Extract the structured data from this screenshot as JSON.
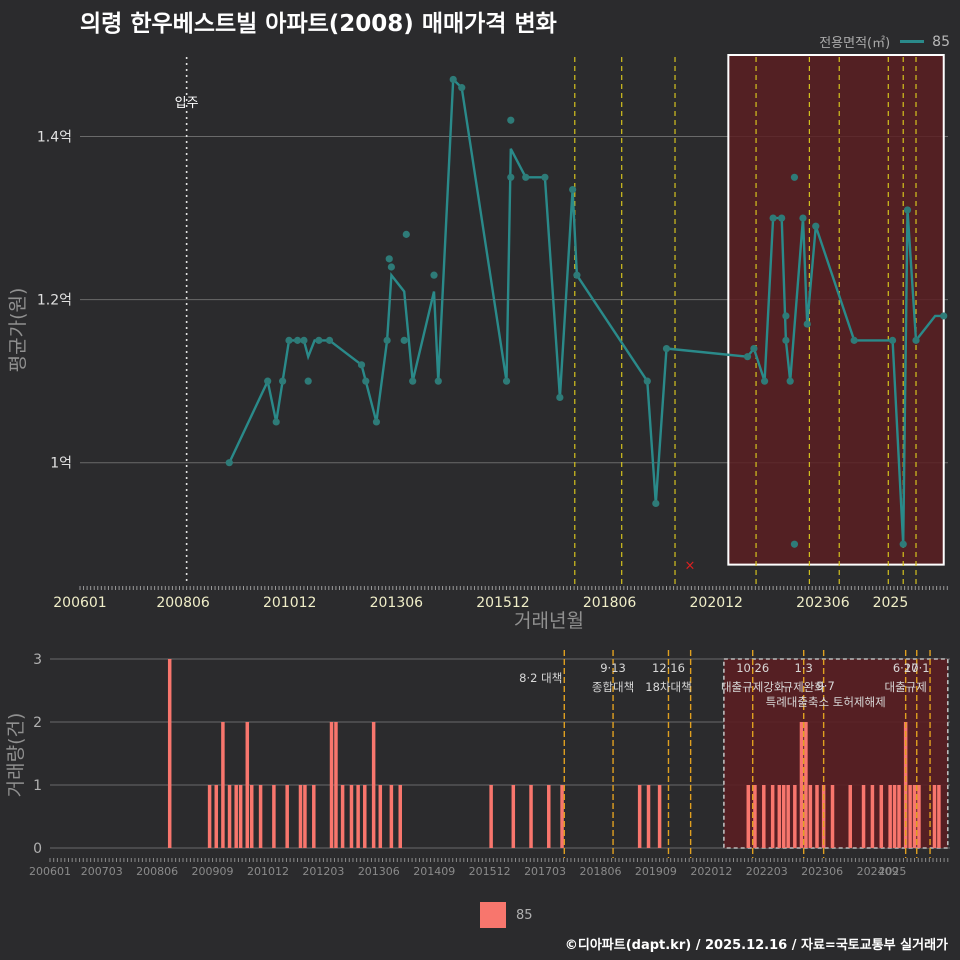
{
  "title": "의령 한우베스트빌 아파트(2008) 매매가격 변화",
  "legend_top": {
    "title": "전용면적(㎡)",
    "value": "85"
  },
  "legend_bottom": {
    "value": "85"
  },
  "footer": "©디아파트(dapt.kr) / 2025.12.16 / 자료=국토교통부 실거래가",
  "colors": {
    "background": "#2b2b2d",
    "line": "#2a8a8a",
    "point": "#2e7b78",
    "bar": "#f8766d",
    "policy": "#d4c21e",
    "policy_bottom": "#e0a020",
    "highlight": "#5a1e22"
  },
  "chart_data": [
    {
      "type": "line",
      "title": "의령 한우베스트빌 아파트(2008) 매매가격 변화",
      "xlabel": "거래년월",
      "ylabel": "평균가(원)",
      "x_ticks": [
        "200601",
        "200806",
        "201012",
        "201306",
        "201512",
        "201806",
        "202012",
        "202306",
        "2025"
      ],
      "y_ticks": [
        {
          "value": 1.0,
          "label": "1억"
        },
        {
          "value": 1.2,
          "label": "1.2억"
        },
        {
          "value": 1.4,
          "label": "1.4억"
        }
      ],
      "ylim": [
        0.85,
        1.5
      ],
      "move_in": {
        "x": 2008.5,
        "label": "입주"
      },
      "policy_lines": [
        2017.6,
        2018.7,
        2019.95,
        2021.85,
        2023.1,
        2023.8,
        2024.95,
        2025.3,
        2025.6
      ],
      "highlight_range": {
        "x": [
          2021.2,
          2026.25
        ],
        "y": [
          0.875,
          1.5
        ]
      },
      "cross_marker": {
        "x": 2020.3,
        "y": 0.875
      },
      "series": [
        {
          "name": "85",
          "line": [
            [
              2009.5,
              1.0
            ],
            [
              2010.4,
              1.1
            ],
            [
              2010.6,
              1.05
            ],
            [
              2010.75,
              1.1
            ],
            [
              2010.9,
              1.15
            ],
            [
              2011.1,
              1.15
            ],
            [
              2011.25,
              1.15
            ],
            [
              2011.35,
              1.13
            ],
            [
              2011.5,
              1.15
            ],
            [
              2011.6,
              1.15
            ],
            [
              2011.85,
              1.15
            ],
            [
              2012.6,
              1.12
            ],
            [
              2012.7,
              1.1
            ],
            [
              2012.95,
              1.05
            ],
            [
              2013.2,
              1.15
            ],
            [
              2013.3,
              1.23
            ],
            [
              2013.6,
              1.21
            ],
            [
              2013.8,
              1.1
            ],
            [
              2014.3,
              1.21
            ],
            [
              2014.4,
              1.1
            ],
            [
              2014.75,
              1.47
            ],
            [
              2014.95,
              1.46
            ],
            [
              2016.0,
              1.1
            ],
            [
              2016.1,
              1.385
            ],
            [
              2016.45,
              1.35
            ],
            [
              2016.9,
              1.35
            ],
            [
              2017.25,
              1.08
            ],
            [
              2017.55,
              1.335
            ],
            [
              2017.65,
              1.23
            ],
            [
              2019.3,
              1.1
            ],
            [
              2019.5,
              0.95
            ],
            [
              2019.75,
              1.14
            ],
            [
              2021.65,
              1.13
            ],
            [
              2021.8,
              1.14
            ],
            [
              2022.05,
              1.1
            ],
            [
              2022.25,
              1.3
            ],
            [
              2022.45,
              1.3
            ],
            [
              2022.55,
              1.15
            ],
            [
              2022.65,
              1.1
            ],
            [
              2022.95,
              1.3
            ],
            [
              2023.05,
              1.17
            ],
            [
              2023.25,
              1.29
            ],
            [
              2024.15,
              1.15
            ],
            [
              2025.05,
              1.15
            ],
            [
              2025.3,
              0.9
            ],
            [
              2025.4,
              1.31
            ],
            [
              2025.6,
              1.15
            ],
            [
              2026.05,
              1.18
            ],
            [
              2026.25,
              1.18
            ]
          ],
          "points": [
            [
              2009.5,
              1.0
            ],
            [
              2010.4,
              1.1
            ],
            [
              2010.6,
              1.05
            ],
            [
              2010.75,
              1.1
            ],
            [
              2010.9,
              1.15
            ],
            [
              2011.1,
              1.15
            ],
            [
              2011.25,
              1.15
            ],
            [
              2011.35,
              1.1
            ],
            [
              2011.6,
              1.15
            ],
            [
              2011.85,
              1.15
            ],
            [
              2012.6,
              1.12
            ],
            [
              2012.7,
              1.1
            ],
            [
              2012.95,
              1.05
            ],
            [
              2013.2,
              1.15
            ],
            [
              2013.25,
              1.25
            ],
            [
              2013.3,
              1.24
            ],
            [
              2013.6,
              1.15
            ],
            [
              2013.65,
              1.28
            ],
            [
              2013.8,
              1.1
            ],
            [
              2014.3,
              1.23
            ],
            [
              2014.4,
              1.1
            ],
            [
              2014.75,
              1.47
            ],
            [
              2014.95,
              1.46
            ],
            [
              2016.0,
              1.1
            ],
            [
              2016.1,
              1.42
            ],
            [
              2016.1,
              1.35
            ],
            [
              2016.45,
              1.35
            ],
            [
              2016.9,
              1.35
            ],
            [
              2017.25,
              1.08
            ],
            [
              2017.55,
              1.335
            ],
            [
              2017.65,
              1.23
            ],
            [
              2019.3,
              1.1
            ],
            [
              2019.5,
              0.95
            ],
            [
              2019.75,
              1.14
            ],
            [
              2021.65,
              1.13
            ],
            [
              2021.8,
              1.14
            ],
            [
              2022.05,
              1.1
            ],
            [
              2022.25,
              1.3
            ],
            [
              2022.45,
              1.3
            ],
            [
              2022.55,
              1.18
            ],
            [
              2022.55,
              1.15
            ],
            [
              2022.65,
              1.1
            ],
            [
              2022.75,
              1.35
            ],
            [
              2022.75,
              0.9
            ],
            [
              2022.95,
              1.3
            ],
            [
              2023.05,
              1.17
            ],
            [
              2023.25,
              1.29
            ],
            [
              2024.15,
              1.15
            ],
            [
              2025.05,
              1.15
            ],
            [
              2025.3,
              0.9
            ],
            [
              2025.4,
              1.31
            ],
            [
              2025.6,
              1.15
            ],
            [
              2026.25,
              1.18
            ]
          ]
        }
      ]
    },
    {
      "type": "bar",
      "xlabel": "",
      "ylabel": "거래량(건)",
      "x_ticks": [
        "200601",
        "200703",
        "200806",
        "200909",
        "201012",
        "201203",
        "201306",
        "201409",
        "201512",
        "201703",
        "201806",
        "201909",
        "202012",
        "202203",
        "202306",
        "202409",
        "2025"
      ],
      "y_ticks": [
        0,
        1,
        2,
        3
      ],
      "ylim": [
        0,
        3.2
      ],
      "highlight_range": {
        "x": [
          2021.2,
          2026.25
        ],
        "y": [
          0,
          3.0
        ]
      },
      "policies": [
        {
          "x": 2017.6,
          "date": "8·2",
          "label": "8·2 대책"
        },
        {
          "x": 2018.7,
          "date": "9·13",
          "label": "종합대책"
        },
        {
          "x": 2019.95,
          "date": "12·16",
          "label": "18차대책"
        },
        {
          "x": 2020.45,
          "date": "",
          "label": ""
        },
        {
          "x": 2021.85,
          "date": "10·26",
          "label": "대출규제강화"
        },
        {
          "x": 2023.0,
          "date": "1·3",
          "label": "규제완화"
        },
        {
          "x": 2023.45,
          "date": "9·7",
          "label": "특례대출축소 토허제해제"
        },
        {
          "x": 2025.3,
          "date": "6·27",
          "label": "대출규제"
        },
        {
          "x": 2025.55,
          "date": "10·1",
          "label": ""
        },
        {
          "x": 2025.85,
          "date": "",
          "label": ""
        }
      ],
      "bars": [
        [
          2008.7,
          3
        ],
        [
          2009.6,
          1
        ],
        [
          2009.75,
          1
        ],
        [
          2009.9,
          2
        ],
        [
          2010.05,
          1
        ],
        [
          2010.2,
          1
        ],
        [
          2010.3,
          1
        ],
        [
          2010.45,
          2
        ],
        [
          2010.55,
          1
        ],
        [
          2010.75,
          1
        ],
        [
          2011.05,
          1
        ],
        [
          2011.35,
          1
        ],
        [
          2011.65,
          1
        ],
        [
          2011.75,
          1
        ],
        [
          2011.95,
          1
        ],
        [
          2012.35,
          2
        ],
        [
          2012.45,
          2
        ],
        [
          2012.6,
          1
        ],
        [
          2012.8,
          1
        ],
        [
          2012.95,
          1
        ],
        [
          2013.1,
          1
        ],
        [
          2013.3,
          2
        ],
        [
          2013.45,
          1
        ],
        [
          2013.7,
          1
        ],
        [
          2013.9,
          1
        ],
        [
          2015.95,
          1
        ],
        [
          2016.45,
          1
        ],
        [
          2016.85,
          1
        ],
        [
          2017.25,
          1
        ],
        [
          2017.55,
          1
        ],
        [
          2019.3,
          1
        ],
        [
          2019.5,
          1
        ],
        [
          2019.75,
          1
        ],
        [
          2021.75,
          1
        ],
        [
          2021.9,
          1
        ],
        [
          2022.1,
          1
        ],
        [
          2022.3,
          1
        ],
        [
          2022.45,
          1
        ],
        [
          2022.55,
          1
        ],
        [
          2022.65,
          1
        ],
        [
          2022.8,
          1
        ],
        [
          2022.95,
          2
        ],
        [
          2023.05,
          2
        ],
        [
          2023.15,
          1
        ],
        [
          2023.3,
          1
        ],
        [
          2023.45,
          1
        ],
        [
          2023.65,
          1
        ],
        [
          2024.05,
          1
        ],
        [
          2024.35,
          1
        ],
        [
          2024.55,
          1
        ],
        [
          2024.75,
          1
        ],
        [
          2024.95,
          1
        ],
        [
          2025.05,
          1
        ],
        [
          2025.15,
          1
        ],
        [
          2025.3,
          2
        ],
        [
          2025.4,
          1
        ],
        [
          2025.5,
          1
        ],
        [
          2025.6,
          1
        ],
        [
          2025.95,
          1
        ],
        [
          2026.05,
          1
        ]
      ]
    }
  ]
}
